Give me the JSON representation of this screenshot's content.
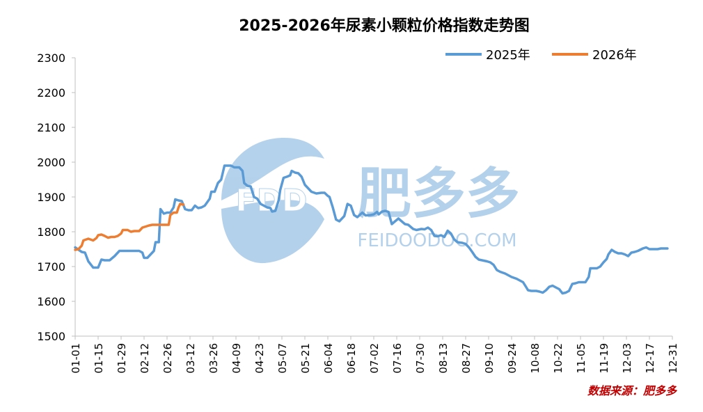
{
  "chart_data": {
    "type": "line",
    "title": "2025-2026年尿素小颗粒价格指数走势图",
    "source_note": "数据来源：肥多多",
    "watermark": {
      "brand_cn": "肥多多",
      "brand_en": "FEIDOODOO.COM",
      "logo_text": "FDD"
    },
    "ylim": [
      1500,
      2300
    ],
    "yticks": [
      1500,
      1600,
      1700,
      1800,
      1900,
      2000,
      2100,
      2200,
      2300
    ],
    "xticks": [
      "01-01",
      "01-15",
      "01-29",
      "02-12",
      "02-26",
      "03-12",
      "03-26",
      "04-09",
      "04-23",
      "05-07",
      "05-21",
      "06-04",
      "06-18",
      "07-02",
      "07-16",
      "07-30",
      "08-13",
      "08-27",
      "09-10",
      "09-24",
      "10-08",
      "10-22",
      "11-05",
      "11-19",
      "12-03",
      "12-17",
      "12-31"
    ],
    "legend_position": "top-right",
    "grid": false,
    "colors": {
      "2025": "#5b9bd5",
      "2026": "#ed7d31",
      "title": "#000000",
      "source": "#c00000"
    },
    "series": [
      {
        "name": "2025年",
        "color": "#5b9bd5",
        "points": [
          [
            0,
            1755
          ],
          [
            4,
            1742
          ],
          [
            6,
            1740
          ],
          [
            8,
            1715
          ],
          [
            11,
            1697
          ],
          [
            14,
            1697
          ],
          [
            16,
            1720
          ],
          [
            18,
            1718
          ],
          [
            21,
            1718
          ],
          [
            24,
            1730
          ],
          [
            27,
            1745
          ],
          [
            30,
            1745
          ],
          [
            33,
            1745
          ],
          [
            36,
            1745
          ],
          [
            39,
            1745
          ],
          [
            41,
            1740
          ],
          [
            42,
            1725
          ],
          [
            44,
            1725
          ],
          [
            46,
            1735
          ],
          [
            48,
            1745
          ],
          [
            49,
            1770
          ],
          [
            51,
            1770
          ],
          [
            52,
            1865
          ],
          [
            54,
            1852
          ],
          [
            56,
            1855
          ],
          [
            58,
            1855
          ],
          [
            60,
            1870
          ],
          [
            61,
            1893
          ],
          [
            63,
            1890
          ],
          [
            65,
            1888
          ],
          [
            67,
            1865
          ],
          [
            69,
            1862
          ],
          [
            71,
            1862
          ],
          [
            73,
            1875
          ],
          [
            75,
            1868
          ],
          [
            77,
            1870
          ],
          [
            79,
            1875
          ],
          [
            82,
            1895
          ],
          [
            83,
            1915
          ],
          [
            85,
            1915
          ],
          [
            87,
            1940
          ],
          [
            89,
            1950
          ],
          [
            91,
            1990
          ],
          [
            93,
            1990
          ],
          [
            95,
            1990
          ],
          [
            97,
            1985
          ],
          [
            100,
            1985
          ],
          [
            102,
            1975
          ],
          [
            103,
            1940
          ],
          [
            105,
            1932
          ],
          [
            107,
            1930
          ],
          [
            109,
            1900
          ],
          [
            111,
            1895
          ],
          [
            113,
            1880
          ],
          [
            115,
            1875
          ],
          [
            117,
            1870
          ],
          [
            119,
            1868
          ],
          [
            120,
            1858
          ],
          [
            122,
            1860
          ],
          [
            124,
            1890
          ],
          [
            125,
            1920
          ],
          [
            127,
            1955
          ],
          [
            129,
            1958
          ],
          [
            131,
            1962
          ],
          [
            132,
            1975
          ],
          [
            134,
            1970
          ],
          [
            136,
            1968
          ],
          [
            138,
            1958
          ],
          [
            140,
            1935
          ],
          [
            142,
            1925
          ],
          [
            144,
            1915
          ],
          [
            147,
            1910
          ],
          [
            150,
            1912
          ],
          [
            152,
            1912
          ],
          [
            154,
            1903
          ],
          [
            155,
            1900
          ],
          [
            157,
            1870
          ],
          [
            159,
            1835
          ],
          [
            161,
            1830
          ],
          [
            164,
            1845
          ],
          [
            166,
            1880
          ],
          [
            168,
            1875
          ],
          [
            170,
            1848
          ],
          [
            172,
            1842
          ],
          [
            175,
            1855
          ],
          [
            177,
            1847
          ],
          [
            180,
            1848
          ],
          [
            182,
            1850
          ],
          [
            184,
            1857
          ],
          [
            185,
            1850
          ],
          [
            187,
            1858
          ],
          [
            189,
            1860
          ],
          [
            191,
            1857
          ],
          [
            193,
            1822
          ],
          [
            195,
            1830
          ],
          [
            197,
            1838
          ],
          [
            199,
            1830
          ],
          [
            201,
            1822
          ],
          [
            203,
            1820
          ],
          [
            206,
            1808
          ],
          [
            208,
            1805
          ],
          [
            211,
            1808
          ],
          [
            213,
            1807
          ],
          [
            215,
            1812
          ],
          [
            217,
            1805
          ],
          [
            219,
            1788
          ],
          [
            221,
            1787
          ],
          [
            223,
            1790
          ],
          [
            225,
            1785
          ],
          [
            227,
            1803
          ],
          [
            229,
            1795
          ],
          [
            231,
            1778
          ],
          [
            233,
            1770
          ],
          [
            236,
            1768
          ],
          [
            238,
            1765
          ],
          [
            240,
            1755
          ],
          [
            242,
            1742
          ],
          [
            244,
            1728
          ],
          [
            246,
            1720
          ],
          [
            248,
            1718
          ],
          [
            251,
            1715
          ],
          [
            253,
            1712
          ],
          [
            255,
            1705
          ],
          [
            257,
            1690
          ],
          [
            259,
            1685
          ],
          [
            262,
            1680
          ],
          [
            264,
            1675
          ],
          [
            266,
            1670
          ],
          [
            269,
            1665
          ],
          [
            271,
            1660
          ],
          [
            273,
            1655
          ],
          [
            275,
            1640
          ],
          [
            276,
            1632
          ],
          [
            278,
            1630
          ],
          [
            281,
            1630
          ],
          [
            283,
            1628
          ],
          [
            285,
            1625
          ],
          [
            287,
            1632
          ],
          [
            289,
            1642
          ],
          [
            291,
            1645
          ],
          [
            293,
            1640
          ],
          [
            295,
            1635
          ],
          [
            297,
            1623
          ],
          [
            299,
            1625
          ],
          [
            301,
            1630
          ],
          [
            303,
            1650
          ],
          [
            305,
            1652
          ],
          [
            307,
            1655
          ],
          [
            309,
            1655
          ],
          [
            311,
            1655
          ],
          [
            313,
            1670
          ],
          [
            314,
            1695
          ],
          [
            316,
            1695
          ],
          [
            318,
            1695
          ],
          [
            320,
            1700
          ],
          [
            322,
            1712
          ],
          [
            324,
            1722
          ],
          [
            325,
            1735
          ],
          [
            327,
            1748
          ],
          [
            329,
            1742
          ],
          [
            331,
            1738
          ],
          [
            333,
            1738
          ],
          [
            335,
            1735
          ],
          [
            337,
            1730
          ],
          [
            339,
            1740
          ],
          [
            341,
            1742
          ],
          [
            343,
            1745
          ],
          [
            346,
            1752
          ],
          [
            348,
            1755
          ],
          [
            350,
            1750
          ],
          [
            352,
            1750
          ],
          [
            355,
            1750
          ],
          [
            357,
            1752
          ],
          [
            359,
            1752
          ],
          [
            361,
            1752
          ]
        ]
      },
      {
        "name": "2026年",
        "color": "#ed7d31",
        "points": [
          [
            0,
            1748
          ],
          [
            2,
            1750
          ],
          [
            4,
            1760
          ],
          [
            5,
            1775
          ],
          [
            8,
            1780
          ],
          [
            11,
            1775
          ],
          [
            13,
            1782
          ],
          [
            14,
            1790
          ],
          [
            16,
            1792
          ],
          [
            18,
            1788
          ],
          [
            20,
            1783
          ],
          [
            22,
            1785
          ],
          [
            24,
            1785
          ],
          [
            26,
            1788
          ],
          [
            28,
            1795
          ],
          [
            29,
            1805
          ],
          [
            32,
            1805
          ],
          [
            34,
            1800
          ],
          [
            36,
            1802
          ],
          [
            39,
            1802
          ],
          [
            41,
            1812
          ],
          [
            43,
            1815
          ],
          [
            45,
            1818
          ],
          [
            47,
            1820
          ],
          [
            49,
            1820
          ],
          [
            51,
            1820
          ],
          [
            53,
            1820
          ],
          [
            55,
            1820
          ],
          [
            57,
            1820
          ],
          [
            58,
            1848
          ],
          [
            60,
            1855
          ],
          [
            62,
            1855
          ],
          [
            63,
            1870
          ],
          [
            64,
            1880
          ],
          [
            66,
            1878
          ]
        ]
      }
    ]
  }
}
